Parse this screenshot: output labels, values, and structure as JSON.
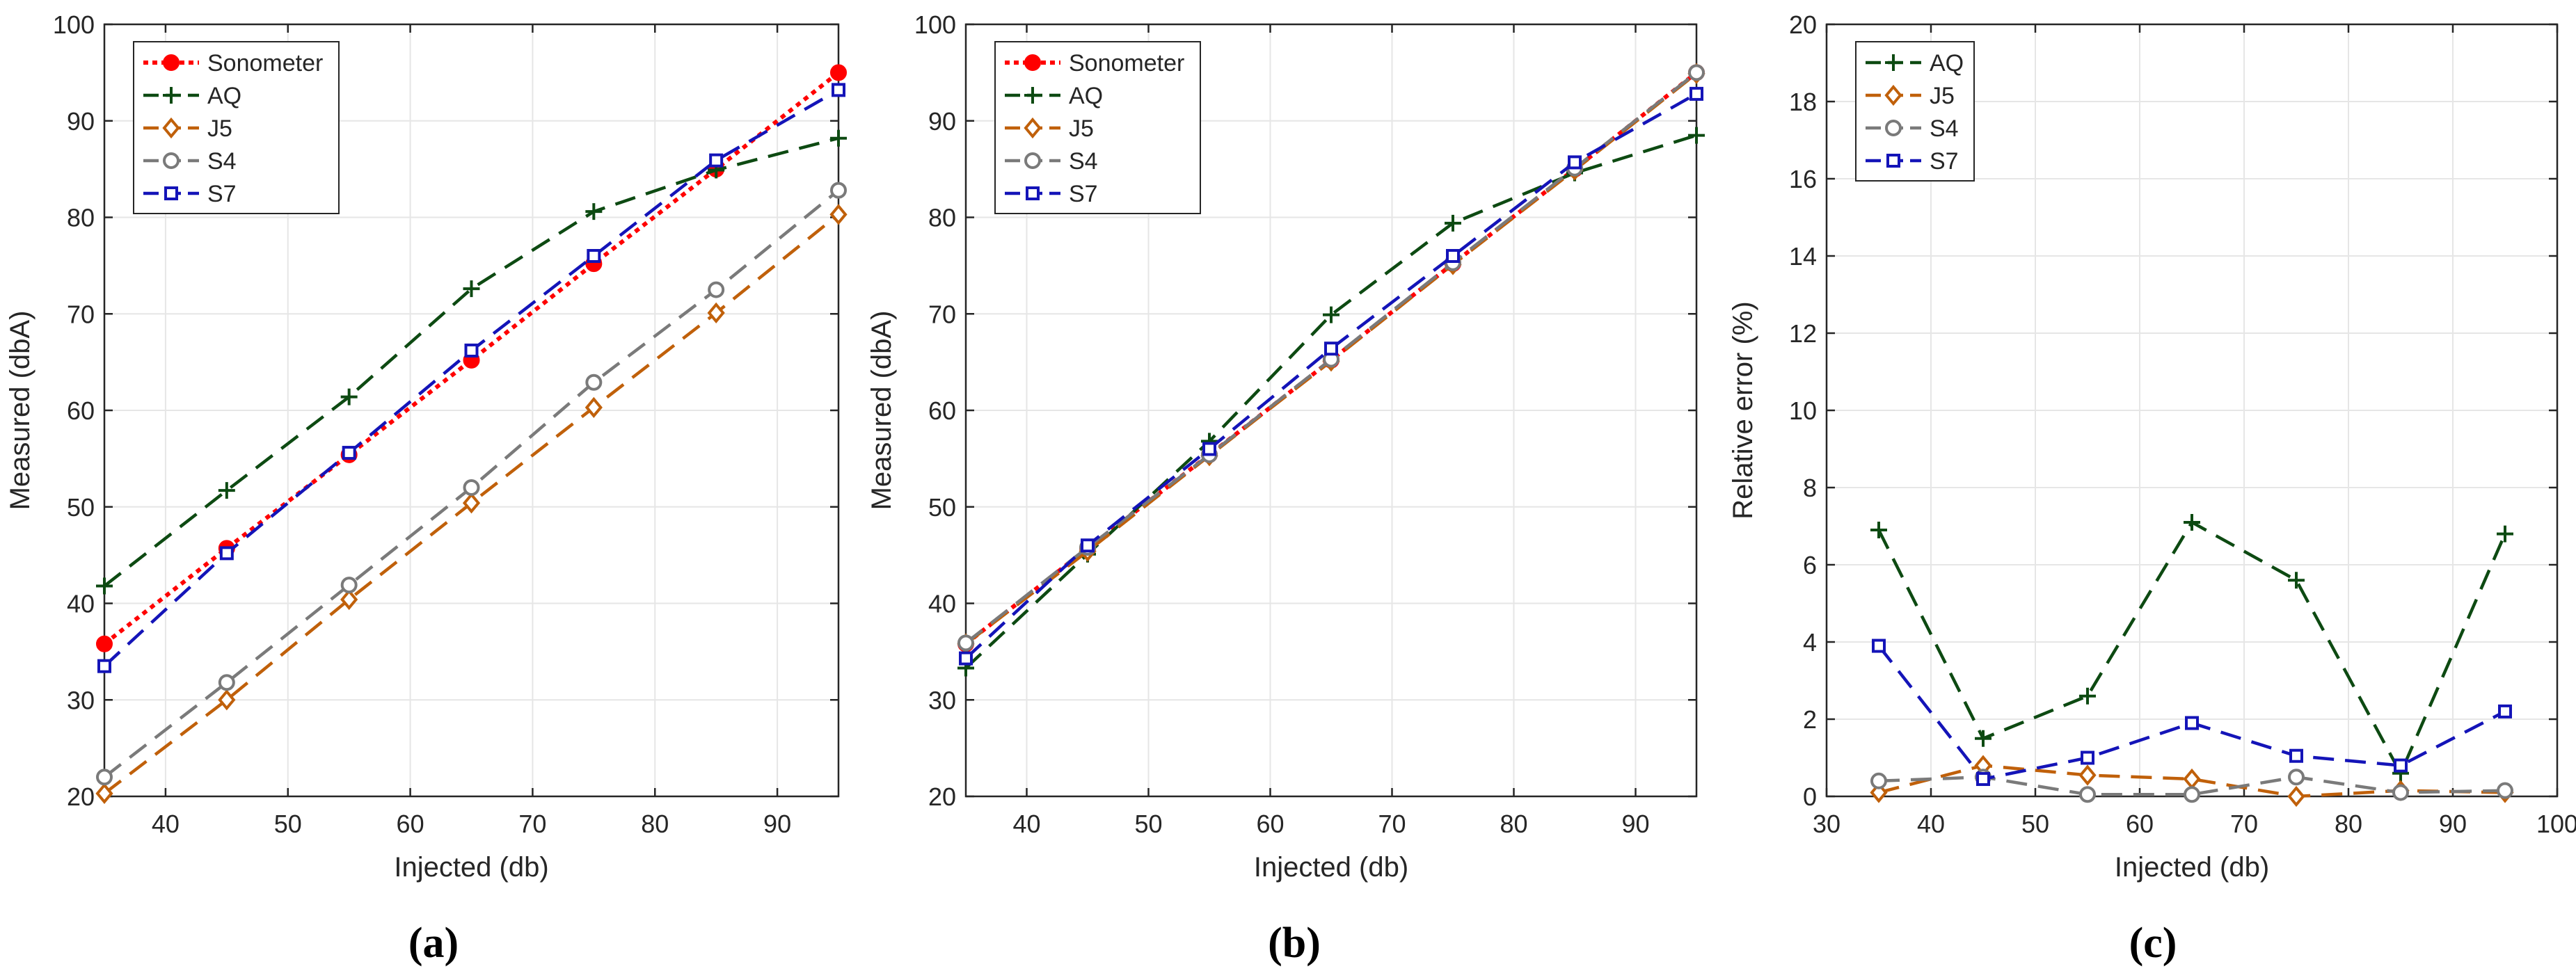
{
  "panel_captions": [
    "(a)",
    "(b)",
    "(c)"
  ],
  "series_styles": {
    "Sonometer": {
      "color": "#ff0000",
      "marker": "dot",
      "dash": "dot"
    },
    "AQ": {
      "color": "#0d4a12",
      "marker": "plus",
      "dash": "dash"
    },
    "J5": {
      "color": "#c0600a",
      "marker": "diamond",
      "dash": "dash"
    },
    "S4": {
      "color": "#7a7a7a",
      "marker": "circle",
      "dash": "dash"
    },
    "S7": {
      "color": "#1414b8",
      "marker": "square",
      "dash": "dash"
    }
  },
  "chart_data": [
    {
      "type": "line",
      "caption": "(a)",
      "title": "",
      "xlabel": "Injected (db)",
      "ylabel": "Measured (dbA)",
      "xlim": [
        35,
        95
      ],
      "ylim": [
        20,
        100
      ],
      "xticks": [
        40,
        50,
        60,
        70,
        80,
        90
      ],
      "yticks": [
        20,
        30,
        40,
        50,
        60,
        70,
        80,
        90,
        100
      ],
      "grid": true,
      "legend_location": "top-left",
      "x": [
        35,
        45,
        55,
        65,
        75,
        85,
        95
      ],
      "series": [
        {
          "name": "Sonometer",
          "values": [
            35.8,
            45.7,
            55.4,
            65.2,
            75.2,
            85.0,
            95.0
          ]
        },
        {
          "name": "AQ",
          "values": [
            41.8,
            51.7,
            61.4,
            72.6,
            80.6,
            84.9,
            88.2
          ]
        },
        {
          "name": "J5",
          "values": [
            20.3,
            30.0,
            40.4,
            50.4,
            60.3,
            70.1,
            80.3
          ]
        },
        {
          "name": "S4",
          "values": [
            22.0,
            31.8,
            41.9,
            52.0,
            62.9,
            72.5,
            82.8
          ]
        },
        {
          "name": "S7",
          "values": [
            33.5,
            45.2,
            55.6,
            66.2,
            76.0,
            85.9,
            93.2
          ]
        }
      ]
    },
    {
      "type": "line",
      "caption": "(b)",
      "title": "",
      "xlabel": "Injected (db)",
      "ylabel": "Measured (dbA)",
      "xlim": [
        35,
        95
      ],
      "ylim": [
        20,
        100
      ],
      "xticks": [
        40,
        50,
        60,
        70,
        80,
        90
      ],
      "yticks": [
        20,
        30,
        40,
        50,
        60,
        70,
        80,
        90,
        100
      ],
      "grid": true,
      "legend_location": "top-left",
      "x": [
        35,
        45,
        55,
        65,
        75,
        85,
        95
      ],
      "series": [
        {
          "name": "Sonometer",
          "values": [
            35.8,
            45.7,
            55.4,
            65.2,
            75.2,
            85.0,
            95.0
          ]
        },
        {
          "name": "AQ",
          "values": [
            33.3,
            45.1,
            56.8,
            69.9,
            79.4,
            84.6,
            88.5
          ]
        },
        {
          "name": "J5",
          "values": [
            35.8,
            45.4,
            55.3,
            65.1,
            75.1,
            84.9,
            94.9
          ]
        },
        {
          "name": "S4",
          "values": [
            35.9,
            45.8,
            55.4,
            65.3,
            75.3,
            85.1,
            95.0
          ]
        },
        {
          "name": "S7",
          "values": [
            34.3,
            46.0,
            56.0,
            66.4,
            76.0,
            85.7,
            92.8
          ]
        }
      ]
    },
    {
      "type": "line",
      "caption": "(c)",
      "title": "",
      "xlabel": "Injected (db)",
      "ylabel": "Relative error (%)",
      "xlim": [
        30,
        100
      ],
      "ylim": [
        0,
        20
      ],
      "xticks": [
        30,
        40,
        50,
        60,
        70,
        80,
        90,
        100
      ],
      "yticks": [
        0,
        2,
        4,
        6,
        8,
        10,
        12,
        14,
        16,
        18,
        20
      ],
      "grid": true,
      "legend_location": "top-left",
      "x": [
        35,
        45,
        55,
        65,
        75,
        85,
        95
      ],
      "series": [
        {
          "name": "AQ",
          "values": [
            6.9,
            1.5,
            2.6,
            7.1,
            5.6,
            0.6,
            6.8
          ]
        },
        {
          "name": "J5",
          "values": [
            0.1,
            0.8,
            0.55,
            0.45,
            0.0,
            0.15,
            0.1
          ]
        },
        {
          "name": "S4",
          "values": [
            0.4,
            0.5,
            0.05,
            0.05,
            0.5,
            0.1,
            0.15
          ]
        },
        {
          "name": "S7",
          "values": [
            3.9,
            0.45,
            1.0,
            1.9,
            1.05,
            0.8,
            2.2
          ]
        }
      ]
    }
  ]
}
